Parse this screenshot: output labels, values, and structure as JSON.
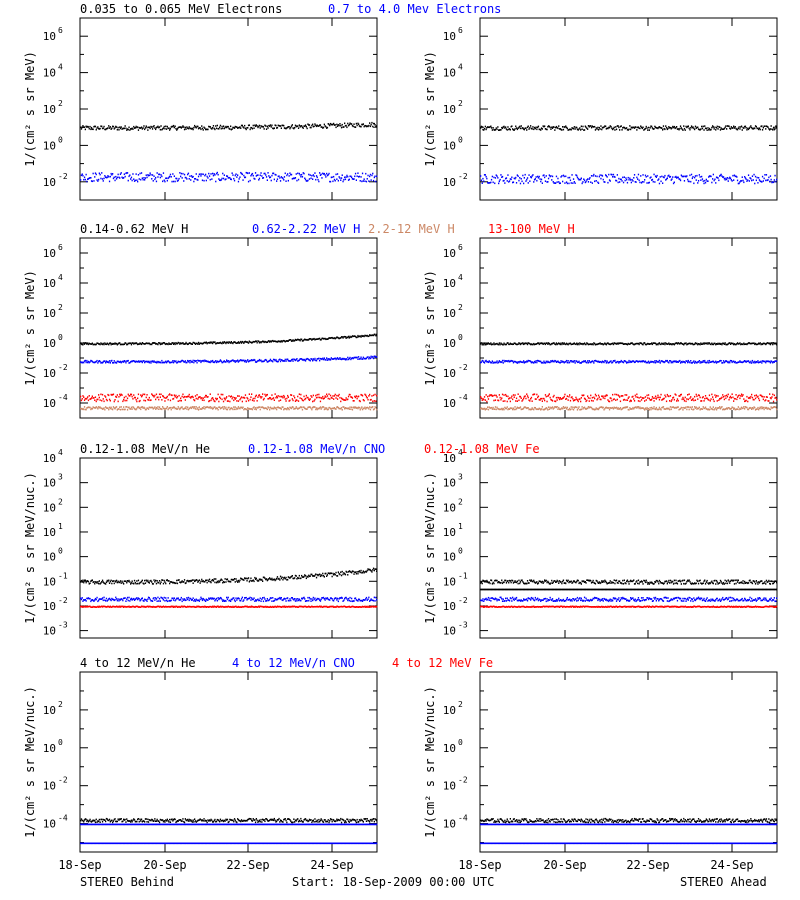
{
  "figure": {
    "footer_left": "STEREO Behind",
    "footer_center": "Start: 18-Sep-2009 00:00 UTC",
    "footer_right": "STEREO Ahead",
    "x_ticks": [
      "18-Sep",
      "20-Sep",
      "22-Sep",
      "24-Sep"
    ]
  },
  "colors": {
    "black": "#000000",
    "blue": "#0000ff",
    "salmon": "#cc8866",
    "red": "#ff0000"
  },
  "chart_data": [
    {
      "type": "scatter",
      "name": "electrons",
      "legend": [
        {
          "label": "0.035 to 0.065 MeV Electrons",
          "color": "#000000"
        },
        {
          "label": "0.7 to 4.0 Mev Electrons",
          "color": "#0000ff"
        }
      ],
      "ylabel": "1/(cm² s sr MeV)",
      "ylim_log10": [
        -3,
        7
      ],
      "yticks": [
        {
          "exp": -2
        },
        {
          "exp": 0
        },
        {
          "exp": 2
        },
        {
          "exp": 4
        },
        {
          "exp": 6
        }
      ],
      "x_days": [
        0,
        8.5
      ],
      "panels": {
        "behind": [
          {
            "color": "#000000",
            "log10_start": 1.0,
            "log10_end": 1.2,
            "spread": 0.12
          },
          {
            "color": "#0000ff",
            "log10_start": -1.7,
            "log10_end": -1.7,
            "spread": 0.25
          }
        ],
        "ahead": [
          {
            "color": "#000000",
            "log10_start": 1.0,
            "log10_end": 1.0,
            "spread": 0.12
          },
          {
            "color": "#0000ff",
            "log10_start": -1.8,
            "log10_end": -1.8,
            "spread": 0.25
          }
        ]
      }
    },
    {
      "type": "scatter",
      "name": "protons",
      "legend": [
        {
          "label": "0.14-0.62 MeV H",
          "color": "#000000"
        },
        {
          "label": "0.62-2.22 MeV H",
          "color": "#0000ff"
        },
        {
          "label": "2.2-12 MeV H",
          "color": "#cc8866"
        },
        {
          "label": "13-100 MeV H",
          "color": "#ff0000"
        }
      ],
      "ylabel": "1/(cm² s sr MeV)",
      "ylim_log10": [
        -5,
        7
      ],
      "yticks": [
        {
          "exp": -4
        },
        {
          "exp": -2
        },
        {
          "exp": 0
        },
        {
          "exp": 2
        },
        {
          "exp": 4
        },
        {
          "exp": 6
        }
      ],
      "x_days": [
        0,
        8.5
      ],
      "panels": {
        "behind": [
          {
            "color": "#000000",
            "log10_start": 0.0,
            "log10_end": 0.6,
            "spread": 0.06
          },
          {
            "color": "#0000ff",
            "log10_start": -1.2,
            "log10_end": -0.9,
            "spread": 0.08
          },
          {
            "color": "#cc8866",
            "log10_start": -4.3,
            "log10_end": -4.3,
            "spread": 0.1
          },
          {
            "color": "#ff0000",
            "log10_start": -3.6,
            "log10_end": -3.6,
            "spread": 0.25
          }
        ],
        "ahead": [
          {
            "color": "#000000",
            "log10_start": 0.0,
            "log10_end": 0.0,
            "spread": 0.06
          },
          {
            "color": "#0000ff",
            "log10_start": -1.2,
            "log10_end": -1.2,
            "spread": 0.08
          },
          {
            "color": "#cc8866",
            "log10_start": -4.3,
            "log10_end": -4.3,
            "spread": 0.1
          },
          {
            "color": "#ff0000",
            "log10_start": -3.6,
            "log10_end": -3.6,
            "spread": 0.25
          }
        ]
      }
    },
    {
      "type": "scatter",
      "name": "low-energy-ions",
      "legend": [
        {
          "label": "0.12-1.08 MeV/n He",
          "color": "#000000"
        },
        {
          "label": "0.12-1.08 MeV/n CNO",
          "color": "#0000ff"
        },
        {
          "label": "0.12-1.08 MeV Fe",
          "color": "#ff0000"
        }
      ],
      "ylabel": "1/(cm² s sr MeV/nuc.)",
      "ylim_log10": [
        -3.3,
        4
      ],
      "yticks": [
        {
          "exp": -3
        },
        {
          "exp": -2
        },
        {
          "exp": -1
        },
        {
          "exp": 0
        },
        {
          "exp": 1
        },
        {
          "exp": 2
        },
        {
          "exp": 3
        },
        {
          "exp": 4
        }
      ],
      "x_days": [
        0,
        8.5
      ],
      "panels": {
        "behind": [
          {
            "color": "#000000",
            "log10_start": -1.0,
            "log10_end": -0.5,
            "spread": 0.08
          },
          {
            "color": "#0000ff",
            "log10_start": -1.7,
            "log10_end": -1.7,
            "spread": 0.08
          },
          {
            "color": "#ff0000",
            "log10_start": -2.0,
            "log10_end": -2.0,
            "spread": 0.02
          }
        ],
        "ahead": [
          {
            "color": "#000000",
            "log10_start": -1.0,
            "log10_end": -1.0,
            "spread": 0.08
          },
          {
            "color": "#000000",
            "log10_start": -1.3,
            "log10_end": -1.3,
            "spread": 0.0
          },
          {
            "color": "#0000ff",
            "log10_start": -1.7,
            "log10_end": -1.7,
            "spread": 0.08
          },
          {
            "color": "#ff0000",
            "log10_start": -2.0,
            "log10_end": -2.0,
            "spread": 0.02
          }
        ]
      }
    },
    {
      "type": "scatter",
      "name": "high-energy-ions",
      "legend": [
        {
          "label": "4 to 12 MeV/n He",
          "color": "#000000"
        },
        {
          "label": "4 to 12 MeV/n CNO",
          "color": "#0000ff"
        },
        {
          "label": "4 to 12 MeV Fe",
          "color": "#ff0000"
        }
      ],
      "ylabel": "1/(cm² s sr MeV/nuc.)",
      "ylim_log10": [
        -5.5,
        4
      ],
      "yticks": [
        {
          "exp": -4
        },
        {
          "exp": -2
        },
        {
          "exp": 0
        },
        {
          "exp": 2
        }
      ],
      "x_days": [
        0,
        8.5
      ],
      "panels": {
        "behind": [
          {
            "color": "#000000",
            "log10_start": -3.8,
            "log10_end": -3.8,
            "spread": 0.1
          },
          {
            "color": "#0000ff",
            "log10_start": -4.0,
            "log10_end": -4.0,
            "spread": 0.0
          },
          {
            "color": "#0000ff",
            "log10_start": -5.0,
            "log10_end": -5.0,
            "spread": 0.0
          }
        ],
        "ahead": [
          {
            "color": "#000000",
            "log10_start": -3.8,
            "log10_end": -3.8,
            "spread": 0.1
          },
          {
            "color": "#0000ff",
            "log10_start": -4.0,
            "log10_end": -4.0,
            "spread": 0.0
          },
          {
            "color": "#0000ff",
            "log10_start": -5.0,
            "log10_end": -5.0,
            "spread": 0.0
          }
        ]
      }
    }
  ]
}
